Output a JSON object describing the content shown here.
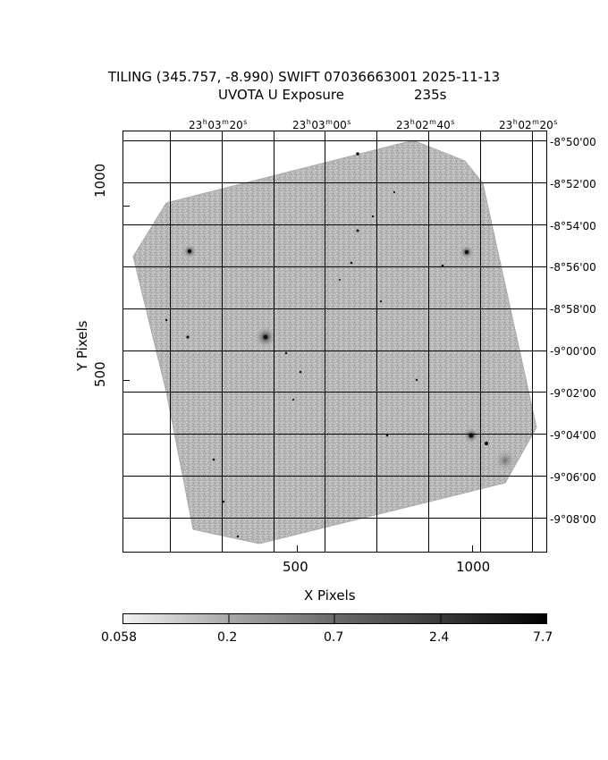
{
  "title": {
    "line1": "TILING (345.757, -8.990) SWIFT 07036663001 2025-11-13",
    "line2_label": "UVOTA U Exposure",
    "line2_value": "235s"
  },
  "axes": {
    "xlabel": "X Pixels",
    "ylabel": "Y Pixels",
    "x_ticks": [
      "500",
      "1000"
    ],
    "y_ticks": [
      "1000",
      "500"
    ],
    "ra_ticks": [
      {
        "h": "23",
        "m": "03",
        "s": "20"
      },
      {
        "h": "23",
        "m": "03",
        "s": "00"
      },
      {
        "h": "23",
        "m": "02",
        "s": "40"
      },
      {
        "h": "23",
        "m": "02",
        "s": "20"
      }
    ],
    "dec_ticks": [
      "-8°50'00",
      "-8°52'00",
      "-8°54'00",
      "-8°56'00",
      "-8°58'00",
      "-9°00'00",
      "-9°02'00",
      "-9°04'00",
      "-9°06'00",
      "-9°08'00"
    ]
  },
  "colorbar": {
    "labels": [
      "0.058",
      "0.2",
      "0.7",
      "2.4",
      "7.7"
    ]
  },
  "colors": {
    "frame": "#000000",
    "exposure_fill": "#b4b4b4",
    "background": "#ffffff"
  }
}
